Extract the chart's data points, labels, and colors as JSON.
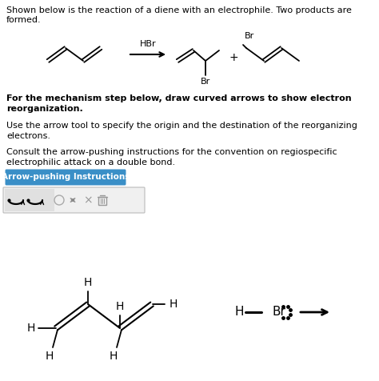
{
  "bg_color": "#ffffff",
  "text_color": "#000000",
  "line1": "Shown below is the reaction of a diene with an electrophile. Two products are",
  "line2": "formed.",
  "bold_line1": "For the mechanism step below, draw curved arrows to show electron",
  "bold_line2": "reorganization.",
  "para1_line1": "Use the arrow tool to specify the origin and the destination of the reorganizing",
  "para1_line2": "electrons.",
  "para2_line1": "Consult the arrow-pushing instructions for the convention on regiospecific",
  "para2_line2": "electrophilic attack on a double bond.",
  "button_text": "Arrow-pushing Instructions",
  "button_color": "#3a8fc7",
  "button_text_color": "#ffffff",
  "font_size_text": 8.0,
  "font_size_bold": 8.0
}
